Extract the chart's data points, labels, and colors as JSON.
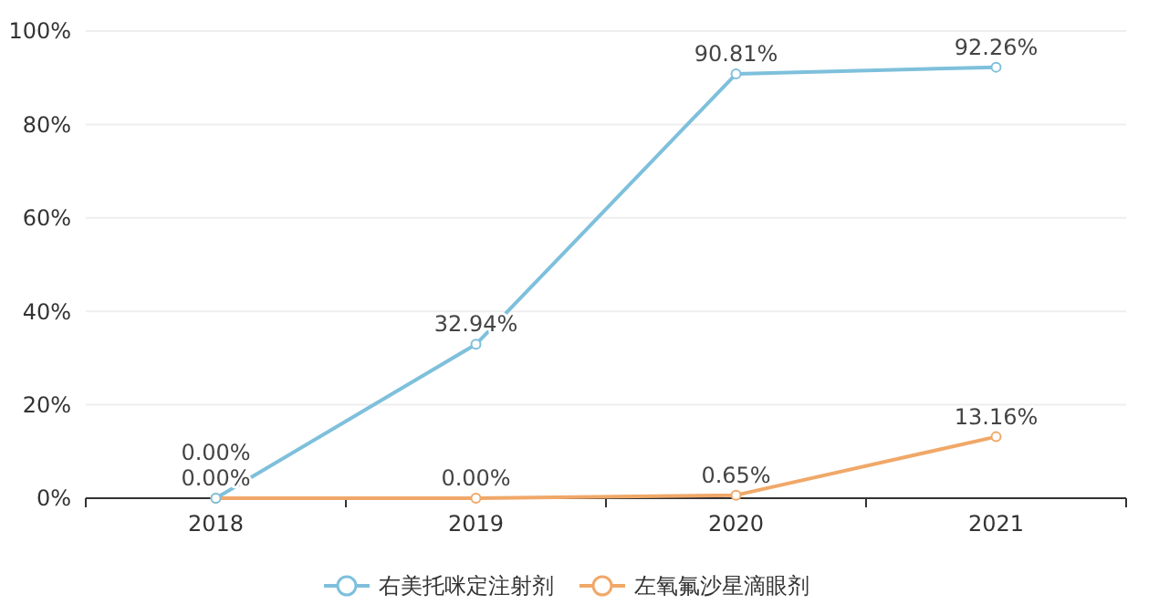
{
  "chart_data": {
    "type": "line",
    "categories": [
      "2018",
      "2019",
      "2020",
      "2021"
    ],
    "series": [
      {
        "name": "右美托咪定注射剂",
        "color": "#7ec0dc",
        "values": [
          0.0,
          32.94,
          90.81,
          92.26
        ],
        "value_labels": [
          "0.00%",
          "32.94%",
          "90.81%",
          "92.26%"
        ]
      },
      {
        "name": "左氧氟沙星滴眼剂",
        "color": "#f0a868",
        "values": [
          0.0,
          0.0,
          0.65,
          13.16
        ],
        "value_labels": [
          "0.00%",
          "0.00%",
          "0.65%",
          "13.16%"
        ]
      }
    ],
    "ylim": [
      0,
      100
    ],
    "yticks": [
      {
        "value": 0,
        "label": "0%"
      },
      {
        "value": 20,
        "label": "20%"
      },
      {
        "value": 40,
        "label": "40%"
      },
      {
        "value": 60,
        "label": "60%"
      },
      {
        "value": 80,
        "label": "80%"
      },
      {
        "value": 100,
        "label": "100%"
      }
    ],
    "grid": "y",
    "legend": "bottom",
    "marker": "circle",
    "line_style": "solid"
  }
}
